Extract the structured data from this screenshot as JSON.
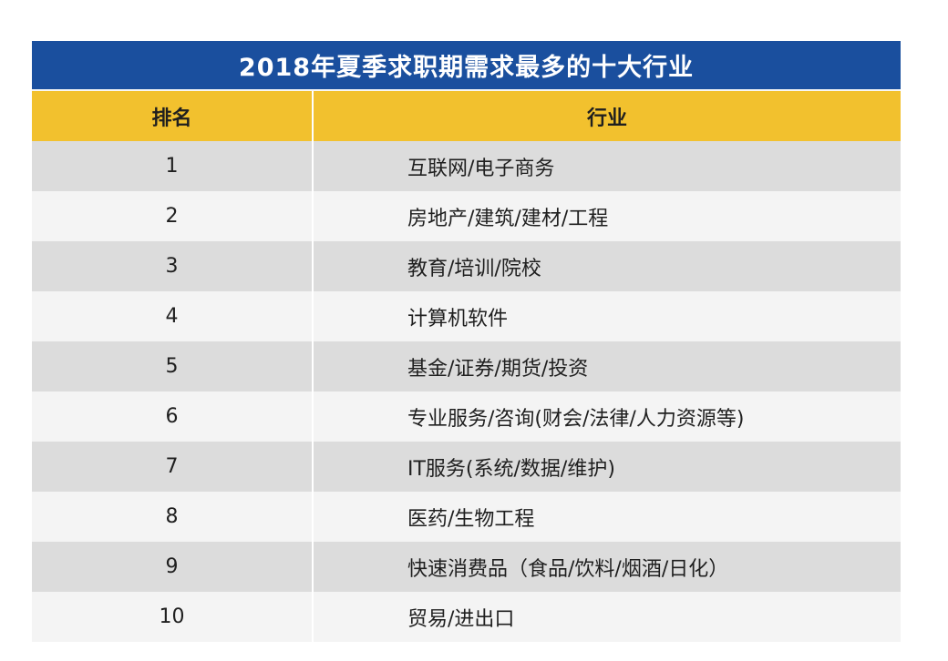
{
  "table": {
    "title": "2018年夏季求职期需求最多的十大行业",
    "headers": {
      "rank": "排名",
      "industry": "行业"
    },
    "rows": [
      {
        "rank": "1",
        "industry": "互联网/电子商务"
      },
      {
        "rank": "2",
        "industry": "房地产/建筑/建材/工程"
      },
      {
        "rank": "3",
        "industry": "教育/培训/院校"
      },
      {
        "rank": "4",
        "industry": "计算机软件"
      },
      {
        "rank": "5",
        "industry": "基金/证券/期货/投资"
      },
      {
        "rank": "6",
        "industry": "专业服务/咨询(财会/法律/人力资源等)"
      },
      {
        "rank": "7",
        "industry": "IT服务(系统/数据/维护)"
      },
      {
        "rank": "8",
        "industry": "医药/生物工程"
      },
      {
        "rank": "9",
        "industry": "快速消费品（食品/饮料/烟酒/日化）"
      },
      {
        "rank": "10",
        "industry": "贸易/进出口"
      }
    ]
  },
  "colors": {
    "title_bg": "#1a4f9e",
    "header_bg": "#f2c12e",
    "row_odd": "#dcdcdc",
    "row_even": "#f4f4f4"
  }
}
